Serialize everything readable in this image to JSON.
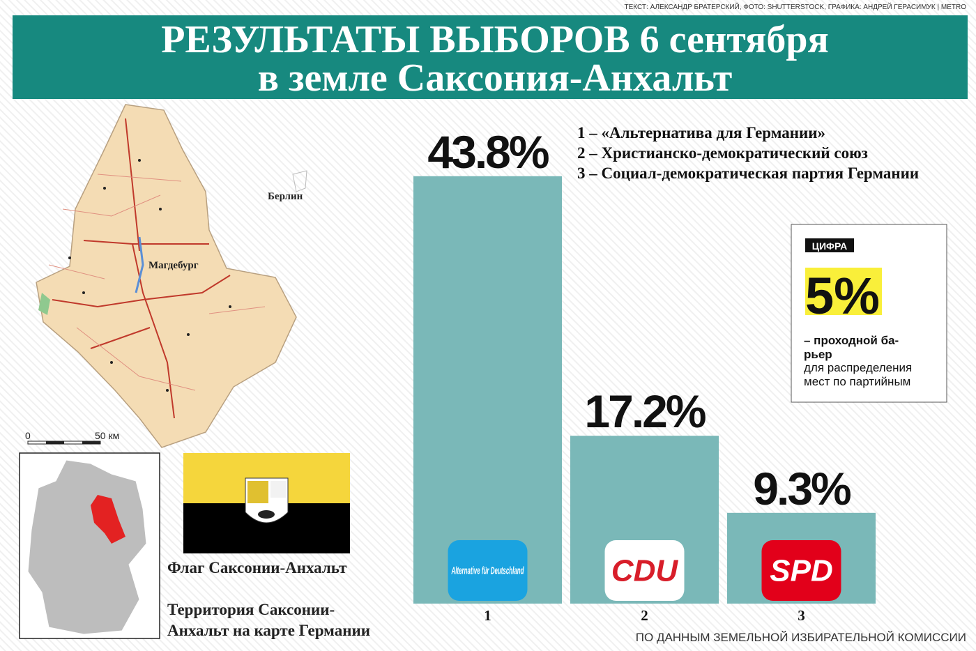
{
  "credits": "ТЕКСТ: АЛЕКСАНДР БРАТЕРСКИЙ, ФОТО: SHUTTERSTOCK, ГРАФИКА: АНДРЕЙ ГЕРАСИМУК | METRO",
  "header": {
    "title_lines": [
      "РЕЗУЛЬТАТЫ ВЫБОРОВ 6 сентября",
      "в земле Саксония-Анхальт"
    ]
  },
  "map": {
    "city_labels": [
      "Берлин",
      "Магдебург"
    ],
    "scale_labels": [
      "0",
      "50 км"
    ]
  },
  "flag_caption": "Флаг Саксонии-Анхальт",
  "territory_caption": [
    "Территория Саксонии-",
    "Анхальт на карте Германии"
  ],
  "fact_box": {
    "tag": "ЦИФРА",
    "figure": "5%",
    "bold_lines": [
      "– проходной ба-",
      "рьер"
    ],
    "lines": [
      "для распределения",
      "мест по партийным"
    ]
  },
  "source": "ПО ДАННЫМ ЗЕМЕЛЬНОЙ ИЗБИРАТЕЛЬНОЙ КОМИССИИ",
  "chart_data": {
    "type": "bar",
    "categories": [
      "1",
      "2",
      "3"
    ],
    "values": [
      43.8,
      17.2,
      9.3
    ],
    "value_labels": [
      "43.8%",
      "17.2%",
      "9.3%"
    ],
    "color": "#7ab8b8",
    "legend": [
      "1 – «Альтернатива для Германии»",
      "2 – Христианско-демократический союз",
      "3 – Социал-демократическая партия Германии"
    ],
    "logos": [
      "Alternative für Deutschland",
      "CDU",
      "SPD"
    ]
  }
}
